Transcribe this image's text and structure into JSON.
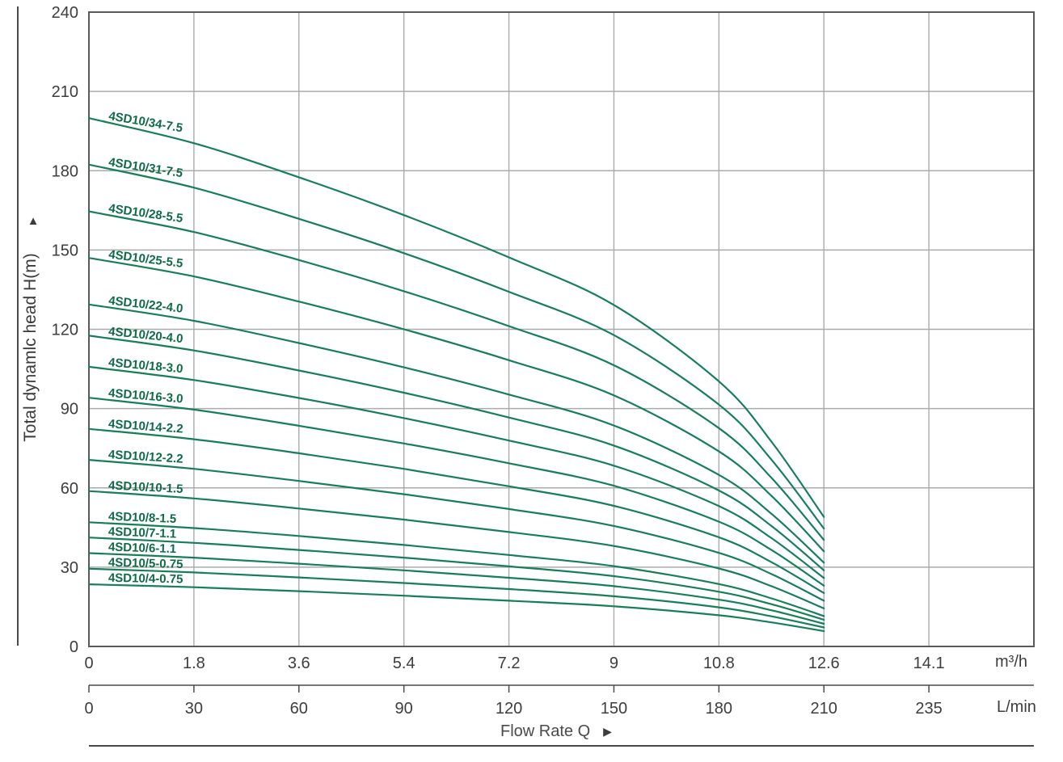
{
  "figure": {
    "y_axis": {
      "title": "Total dynamlc head H(m)",
      "arrow_glyph": "▲",
      "ticks": [
        240,
        210,
        180,
        150,
        120,
        90,
        60,
        30,
        0
      ]
    },
    "x_axis_primary": {
      "unit": "m³/h",
      "tick_labels": [
        "0",
        "1.8",
        "3.6",
        "5.4",
        "7.2",
        "9",
        "10.8",
        "12.6",
        "14.1"
      ]
    },
    "x_axis_secondary": {
      "unit": "L/min",
      "tick_labels": [
        "0",
        "30",
        "60",
        "90",
        "120",
        "150",
        "180",
        "210",
        "235"
      ]
    },
    "x_title": "Flow Rate Q",
    "x_title_arrow": "▶",
    "colors": {
      "curve": "#167f58",
      "curve_label": "#0f6b47",
      "grid": "#ababab",
      "border": "#5a5a5a",
      "axis": "#4a4a4a",
      "text": "#3d3d3d"
    }
  },
  "chart_data": {
    "type": "line",
    "xlabel": "Flow Rate Q",
    "ylabel": "Total dynamlc head H(m)",
    "x_unit": "m³/h",
    "secondary_x_unit": "L/min",
    "ylim": [
      0,
      240
    ],
    "xlim": [
      0,
      16.2
    ],
    "grid": true,
    "legend_position": "on-curve-labels",
    "x": [
      0,
      1.8,
      3.6,
      5.4,
      7.2,
      9,
      10.8,
      11.7,
      12.6
    ],
    "series": [
      {
        "name": "4SD10/34-7.5",
        "values": [
          199.9,
          190.4,
          177.5,
          163.2,
          147.2,
          129.2,
          100.3,
          77.5,
          49.0
        ]
      },
      {
        "name": "4SD10/31-7.5",
        "values": [
          182.3,
          173.6,
          161.8,
          148.8,
          134.2,
          117.8,
          91.5,
          70.7,
          44.6
        ]
      },
      {
        "name": "4SD10/28-5.5",
        "values": [
          164.6,
          156.8,
          146.2,
          134.4,
          121.2,
          106.4,
          82.6,
          63.8,
          40.3
        ]
      },
      {
        "name": "4SD10/25-5.5",
        "values": [
          147.0,
          140.0,
          130.5,
          120.0,
          108.3,
          95.0,
          73.8,
          57.0,
          36.0
        ]
      },
      {
        "name": "4SD10/22-4.0",
        "values": [
          129.4,
          123.2,
          114.8,
          105.6,
          95.3,
          83.6,
          64.9,
          50.2,
          31.7
        ]
      },
      {
        "name": "4SD10/20-4.0",
        "values": [
          117.6,
          112.0,
          104.4,
          96.0,
          86.6,
          76.0,
          59.0,
          45.6,
          28.8
        ]
      },
      {
        "name": "4SD10/18-3.0",
        "values": [
          105.8,
          100.8,
          94.0,
          86.4,
          77.9,
          68.4,
          53.1,
          41.0,
          25.9
        ]
      },
      {
        "name": "4SD10/16-3.0",
        "values": [
          94.1,
          89.6,
          83.5,
          76.8,
          69.3,
          60.8,
          47.2,
          36.5,
          23.0
        ]
      },
      {
        "name": "4SD10/14-2.2",
        "values": [
          82.3,
          78.4,
          73.1,
          67.2,
          60.6,
          53.2,
          41.3,
          31.9,
          20.2
        ]
      },
      {
        "name": "4SD10/12-2.2",
        "values": [
          70.6,
          67.2,
          62.6,
          57.6,
          52.0,
          45.6,
          35.4,
          27.4,
          17.3
        ]
      },
      {
        "name": "4SD10/10-1.5",
        "values": [
          58.8,
          56.0,
          52.2,
          48.0,
          43.3,
          38.0,
          29.5,
          22.8,
          14.4
        ]
      },
      {
        "name": "4SD10/8-1.5",
        "values": [
          47.0,
          44.8,
          41.8,
          38.4,
          34.6,
          30.4,
          23.6,
          18.2,
          11.5
        ]
      },
      {
        "name": "4SD10/7-1.1",
        "values": [
          41.2,
          39.2,
          36.5,
          33.6,
          30.3,
          26.6,
          20.7,
          16.0,
          10.1
        ]
      },
      {
        "name": "4SD10/6-1.1",
        "values": [
          35.3,
          33.6,
          31.3,
          28.8,
          26.0,
          22.8,
          17.7,
          13.7,
          8.6
        ]
      },
      {
        "name": "4SD10/5-0.75",
        "values": [
          29.4,
          28.0,
          26.1,
          24.0,
          21.7,
          19.0,
          14.8,
          11.4,
          7.2
        ]
      },
      {
        "name": "4SD10/4-0.75",
        "values": [
          23.5,
          22.4,
          20.9,
          19.2,
          17.3,
          15.2,
          11.8,
          9.1,
          5.8
        ]
      }
    ]
  }
}
